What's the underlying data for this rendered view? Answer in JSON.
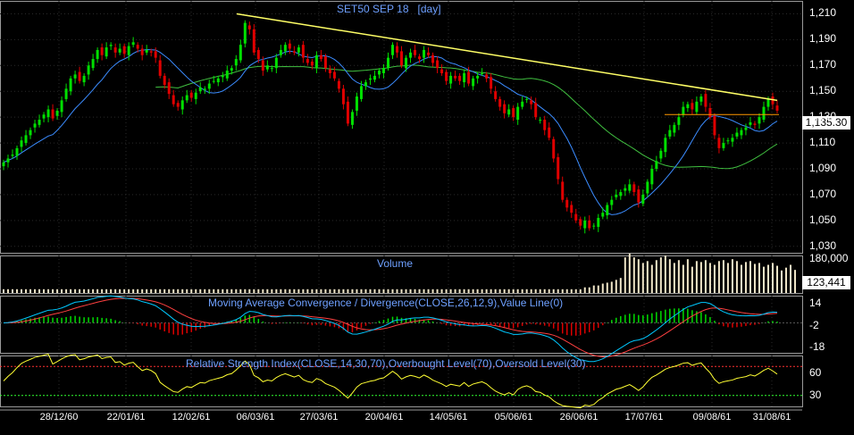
{
  "chart_data": [
    {
      "type": "candlestick",
      "title": "SET50 SEP 18",
      "subtitle": "[day]",
      "ylim": [
        1025,
        1220
      ],
      "yticks": [
        "1,210",
        "1,190",
        "1,170",
        "1,150",
        "1,130",
        "1,110",
        "1,090",
        "1,070",
        "1,050",
        "1,030"
      ],
      "last_value": "1,135.30",
      "series": [
        {
          "name": "MA short",
          "color": "#3b8cff"
        },
        {
          "name": "MA long",
          "color": "#40c040"
        },
        {
          "name": "trend line",
          "color": "#ffff66",
          "from": [
            "06/03/61",
            1210
          ],
          "to": [
            "31/08/61",
            1143
          ]
        },
        {
          "name": "level line",
          "color": "#ff9900",
          "value": 1132
        }
      ],
      "closes": [
        1095,
        1098,
        1101,
        1106,
        1112,
        1116,
        1120,
        1125,
        1128,
        1132,
        1136,
        1129,
        1135,
        1143,
        1152,
        1160,
        1163,
        1158,
        1162,
        1170,
        1175,
        1182,
        1178,
        1184,
        1186,
        1180,
        1183,
        1179,
        1185,
        1188,
        1183,
        1178,
        1182,
        1180,
        1176,
        1162,
        1155,
        1148,
        1140,
        1138,
        1143,
        1147,
        1145,
        1149,
        1153,
        1152,
        1156,
        1158,
        1160,
        1162,
        1166,
        1168,
        1175,
        1186,
        1203,
        1198,
        1180,
        1175,
        1166,
        1170,
        1168,
        1176,
        1182,
        1186,
        1183,
        1180,
        1184,
        1176,
        1172,
        1170,
        1178,
        1175,
        1168,
        1164,
        1160,
        1152,
        1140,
        1125,
        1134,
        1146,
        1154,
        1157,
        1160,
        1162,
        1166,
        1168,
        1176,
        1186,
        1180,
        1170,
        1176,
        1180,
        1178,
        1175,
        1182,
        1178,
        1172,
        1168,
        1164,
        1158,
        1162,
        1160,
        1158,
        1164,
        1156,
        1160,
        1162,
        1164,
        1160,
        1152,
        1144,
        1138,
        1133,
        1136,
        1130,
        1138,
        1142,
        1144,
        1140,
        1130,
        1128,
        1120,
        1114,
        1098,
        1082,
        1066,
        1060,
        1056,
        1050,
        1046,
        1050,
        1044,
        1046,
        1052,
        1056,
        1062,
        1066,
        1070,
        1072,
        1075,
        1078,
        1072,
        1064,
        1070,
        1080,
        1090,
        1096,
        1104,
        1114,
        1120,
        1124,
        1130,
        1138,
        1140,
        1136,
        1142,
        1146,
        1138,
        1130,
        1116,
        1106,
        1110,
        1112,
        1114,
        1118,
        1120,
        1122,
        1126,
        1124,
        1130,
        1138,
        1144,
        1140,
        1135
      ]
    },
    {
      "type": "bar",
      "title": "Volume",
      "ylim": [
        0,
        200000
      ],
      "yticks": [
        "180,000"
      ],
      "last_value": "123,441",
      "values_k": [
        20,
        20,
        20,
        20,
        20,
        20,
        20,
        20,
        20,
        20,
        20,
        20,
        20,
        20,
        20,
        20,
        20,
        20,
        20,
        20,
        20,
        20,
        20,
        20,
        20,
        20,
        20,
        20,
        20,
        20,
        20,
        20,
        20,
        20,
        20,
        20,
        20,
        20,
        20,
        20,
        20,
        20,
        20,
        20,
        20,
        20,
        20,
        20,
        20,
        20,
        20,
        20,
        20,
        20,
        20,
        20,
        20,
        20,
        20,
        20,
        20,
        20,
        20,
        20,
        20,
        20,
        20,
        20,
        20,
        20,
        20,
        20,
        20,
        20,
        20,
        20,
        20,
        20,
        20,
        20,
        20,
        20,
        20,
        20,
        20,
        20,
        20,
        20,
        20,
        20,
        20,
        20,
        20,
        20,
        20,
        20,
        20,
        20,
        20,
        20,
        20,
        20,
        20,
        20,
        20,
        20,
        20,
        20,
        20,
        20,
        20,
        20,
        20,
        20,
        20,
        20,
        20,
        20,
        20,
        20,
        20,
        20,
        20,
        20,
        20,
        20,
        20,
        20,
        20,
        20,
        30,
        30,
        40,
        40,
        50,
        55,
        60,
        70,
        80,
        190,
        210,
        190,
        180,
        160,
        170,
        150,
        175,
        190,
        200,
        180,
        160,
        175,
        150,
        180,
        140,
        170,
        165,
        175,
        160,
        150,
        170,
        175,
        160,
        180,
        170,
        150,
        165,
        170,
        155,
        160,
        140,
        150,
        160,
        145,
        120,
        135,
        150,
        123
      ]
    },
    {
      "type": "line",
      "title": "Moving Average Convergence / Divergence(CLOSE,26,12,9),Value Line(0)",
      "ylim": [
        -22,
        20
      ],
      "yticks": [
        "14",
        "-2",
        "-18"
      ],
      "series": [
        {
          "name": "MACD",
          "color": "#00c8ff"
        },
        {
          "name": "Signal",
          "color": "#ff4040"
        },
        {
          "name": "Histogram",
          "color": "#00ff00"
        }
      ]
    },
    {
      "type": "line",
      "title": "Relative Strength Index(CLOSE,14,30,70),Overbought Level(70),Oversold Level(30)",
      "ylim": [
        15,
        85
      ],
      "yticks": [
        "60",
        "30"
      ],
      "levels": {
        "overbought": 70,
        "oversold": 30
      },
      "series": [
        {
          "name": "RSI",
          "color": "#ffff33"
        }
      ]
    }
  ],
  "x_ticks": [
    "28/12/60",
    "22/01/61",
    "12/02/61",
    "06/03/61",
    "27/03/61",
    "20/04/61",
    "14/05/61",
    "05/06/61",
    "26/06/61",
    "17/07/61",
    "09/08/61",
    "31/08/61"
  ]
}
